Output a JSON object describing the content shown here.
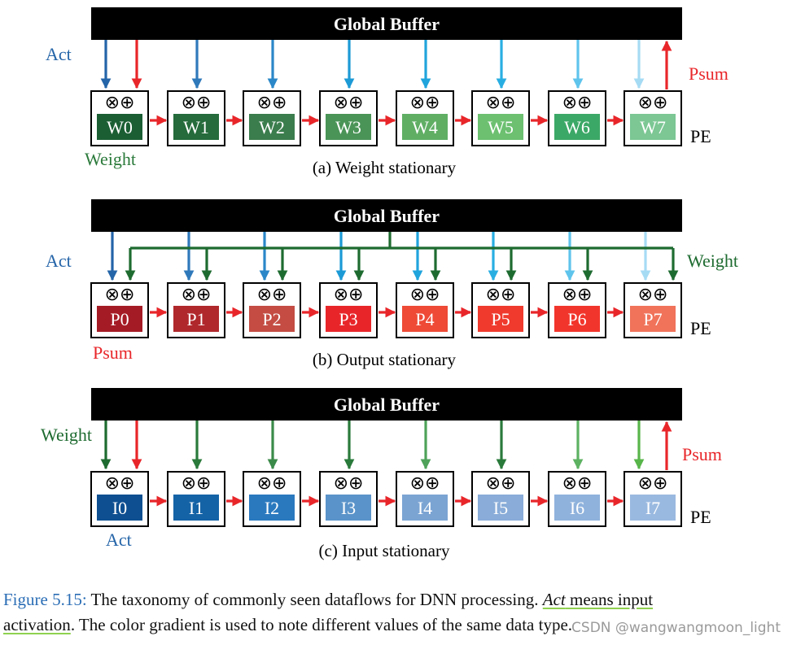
{
  "diagrams": [
    {
      "id": "ws",
      "buffer_label": "Global Buffer",
      "subcaption": "(a) Weight stationary",
      "pe_labels": [
        "W0",
        "W1",
        "W2",
        "W3",
        "W4",
        "W5",
        "W6",
        "W7"
      ],
      "pe_colors": [
        "#1b5e34",
        "#256b3b",
        "#3b7d4d",
        "#4a9457",
        "#5fae64",
        "#6cc070",
        "#3ca867",
        "#7cc794"
      ],
      "top_arrow_colors": [
        "#2464a8",
        "#2f79ba",
        "#2b87c8",
        "#1c9ad6",
        "#20a4dc",
        "#29aee2",
        "#5fc4ec",
        "#a6dbf4"
      ],
      "input_label": "Act",
      "input_label_color": "#2464a8",
      "first_extra_arrow_color": "#e8262a",
      "output_label": "Psum",
      "output_label_color": "#e8262a",
      "stationary_label": "Weight",
      "stationary_label_color": "#2b7a3b",
      "pe_caption": "PE",
      "chain_color": "#e8262a"
    },
    {
      "id": "os",
      "buffer_label": "Global Buffer",
      "subcaption": "(b) Output stationary",
      "pe_labels": [
        "P0",
        "P1",
        "P2",
        "P3",
        "P4",
        "P5",
        "P6",
        "P7"
      ],
      "pe_colors": [
        "#a51b25",
        "#b0282c",
        "#c44c43",
        "#e8262a",
        "#ee4a36",
        "#ef3a2d",
        "#f2352c",
        "#f0735a"
      ],
      "top_arrow_colors": [
        "#2464a8",
        "#2f79ba",
        "#2b87c8",
        "#1c9ad6",
        "#20a4dc",
        "#29aee2",
        "#5fc4ec",
        "#a6dbf4"
      ],
      "input_label": "Act",
      "input_label_color": "#2464a8",
      "weight_label": "Weight",
      "weight_label_color": "#1e6b30",
      "bus_color": "#1e6b30",
      "output_label": "Psum",
      "output_label_color": "#e8262a",
      "pe_caption": "PE",
      "chain_color": "#e8262a"
    },
    {
      "id": "is",
      "buffer_label": "Global Buffer",
      "subcaption": "(c) Input stationary",
      "pe_labels": [
        "I0",
        "I1",
        "I2",
        "I3",
        "I4",
        "I5",
        "I6",
        "I7"
      ],
      "pe_colors": [
        "#0e4f91",
        "#1463a6",
        "#2a79bf",
        "#5a93c9",
        "#7ba4d3",
        "#89acd8",
        "#8fb2dc",
        "#9ab9e0"
      ],
      "top_arrow_colors": [
        "#1e6b30",
        "#2a7a3b",
        "#3b8a4a",
        "#2a7a3b",
        "#4ea25a",
        "#2a7a3b",
        "#5db262",
        "#58b54a"
      ],
      "input_label": "Weight",
      "input_label_color": "#1e6b30",
      "first_extra_arrow_color": "#e8262a",
      "output_label": "Psum",
      "output_label_color": "#e8262a",
      "stationary_label": "Act",
      "stationary_label_color": "#2464a8",
      "pe_caption": "PE",
      "chain_color": "#e8262a"
    }
  ],
  "pe_ops": "⊗⊕",
  "caption": {
    "figure_ref": "Figure 5.15:",
    "text_before": " The taxonomy of commonly seen dataflows for DNN processing. ",
    "act_term": "Act",
    "means_input": " means input",
    "activation": "activation",
    "text_after": ". The color gradient is used to note different values of the same data type."
  },
  "watermark": "CSDN @wangwangmoon_light"
}
